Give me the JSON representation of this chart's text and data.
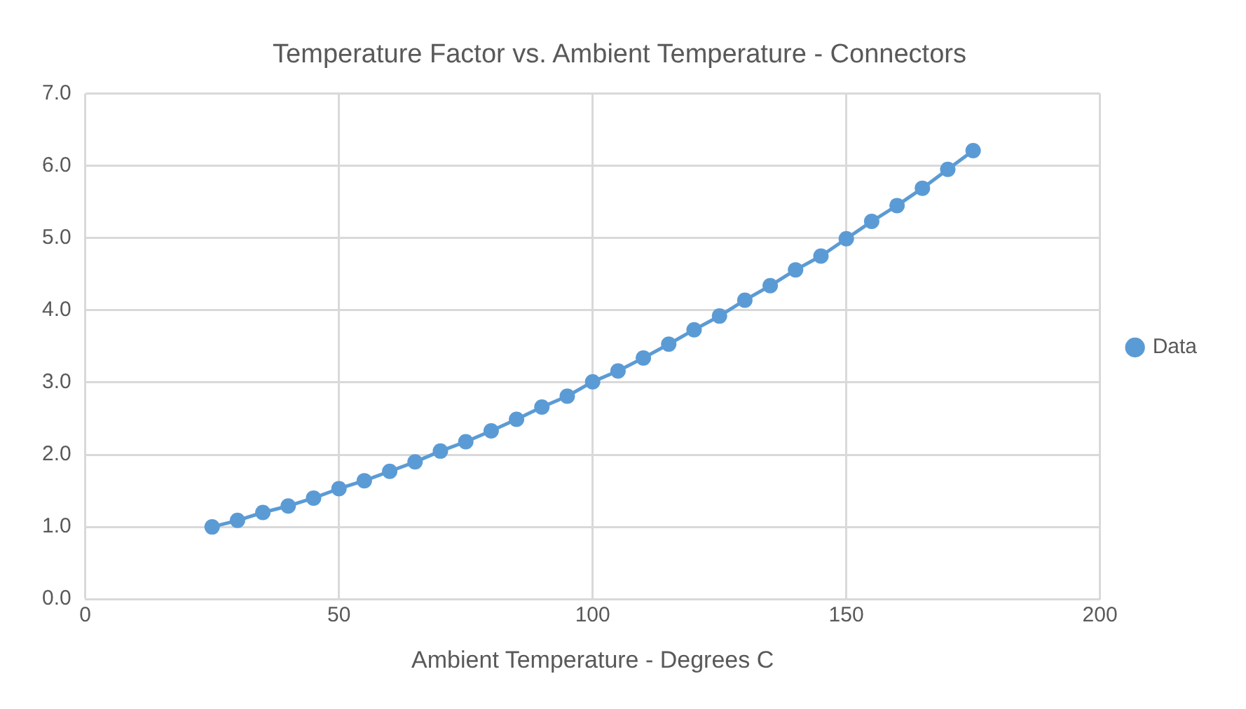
{
  "chart_data": {
    "type": "line",
    "title": "Temperature Factor vs. Ambient Temperature - Connectors",
    "xlabel": "Ambient Temperature - Degrees C",
    "series": [
      {
        "name": "Data",
        "color": "#5b9bd5",
        "x": [
          25,
          30,
          35,
          40,
          45,
          50,
          55,
          60,
          65,
          70,
          75,
          80,
          85,
          90,
          95,
          100,
          105,
          110,
          115,
          120,
          125,
          130,
          135,
          140,
          145,
          150,
          155,
          160,
          165,
          170,
          175
        ],
        "values": [
          1.0,
          1.09,
          1.2,
          1.29,
          1.4,
          1.53,
          1.64,
          1.77,
          1.9,
          2.05,
          2.18,
          2.33,
          2.49,
          2.66,
          2.81,
          3.01,
          3.16,
          3.34,
          3.53,
          3.73,
          3.92,
          4.14,
          4.34,
          4.56,
          4.75,
          4.99,
          5.23,
          5.45,
          5.69,
          5.95,
          6.21
        ]
      }
    ],
    "xlim": [
      0,
      200
    ],
    "xticks": [
      0,
      50,
      100,
      150,
      200
    ],
    "ylim": [
      0,
      7
    ],
    "yticks": [
      {
        "value": 0,
        "label": "0.0"
      },
      {
        "value": 1,
        "label": "1.0"
      },
      {
        "value": 2,
        "label": "2.0"
      },
      {
        "value": 3,
        "label": "3.0"
      },
      {
        "value": 4,
        "label": "4.0"
      },
      {
        "value": 5,
        "label": "5.0"
      },
      {
        "value": 6,
        "label": "6.0"
      },
      {
        "value": 7,
        "label": "7.0"
      }
    ],
    "grid": true,
    "legend": "right",
    "marker": "circle",
    "line_style": "solid"
  }
}
